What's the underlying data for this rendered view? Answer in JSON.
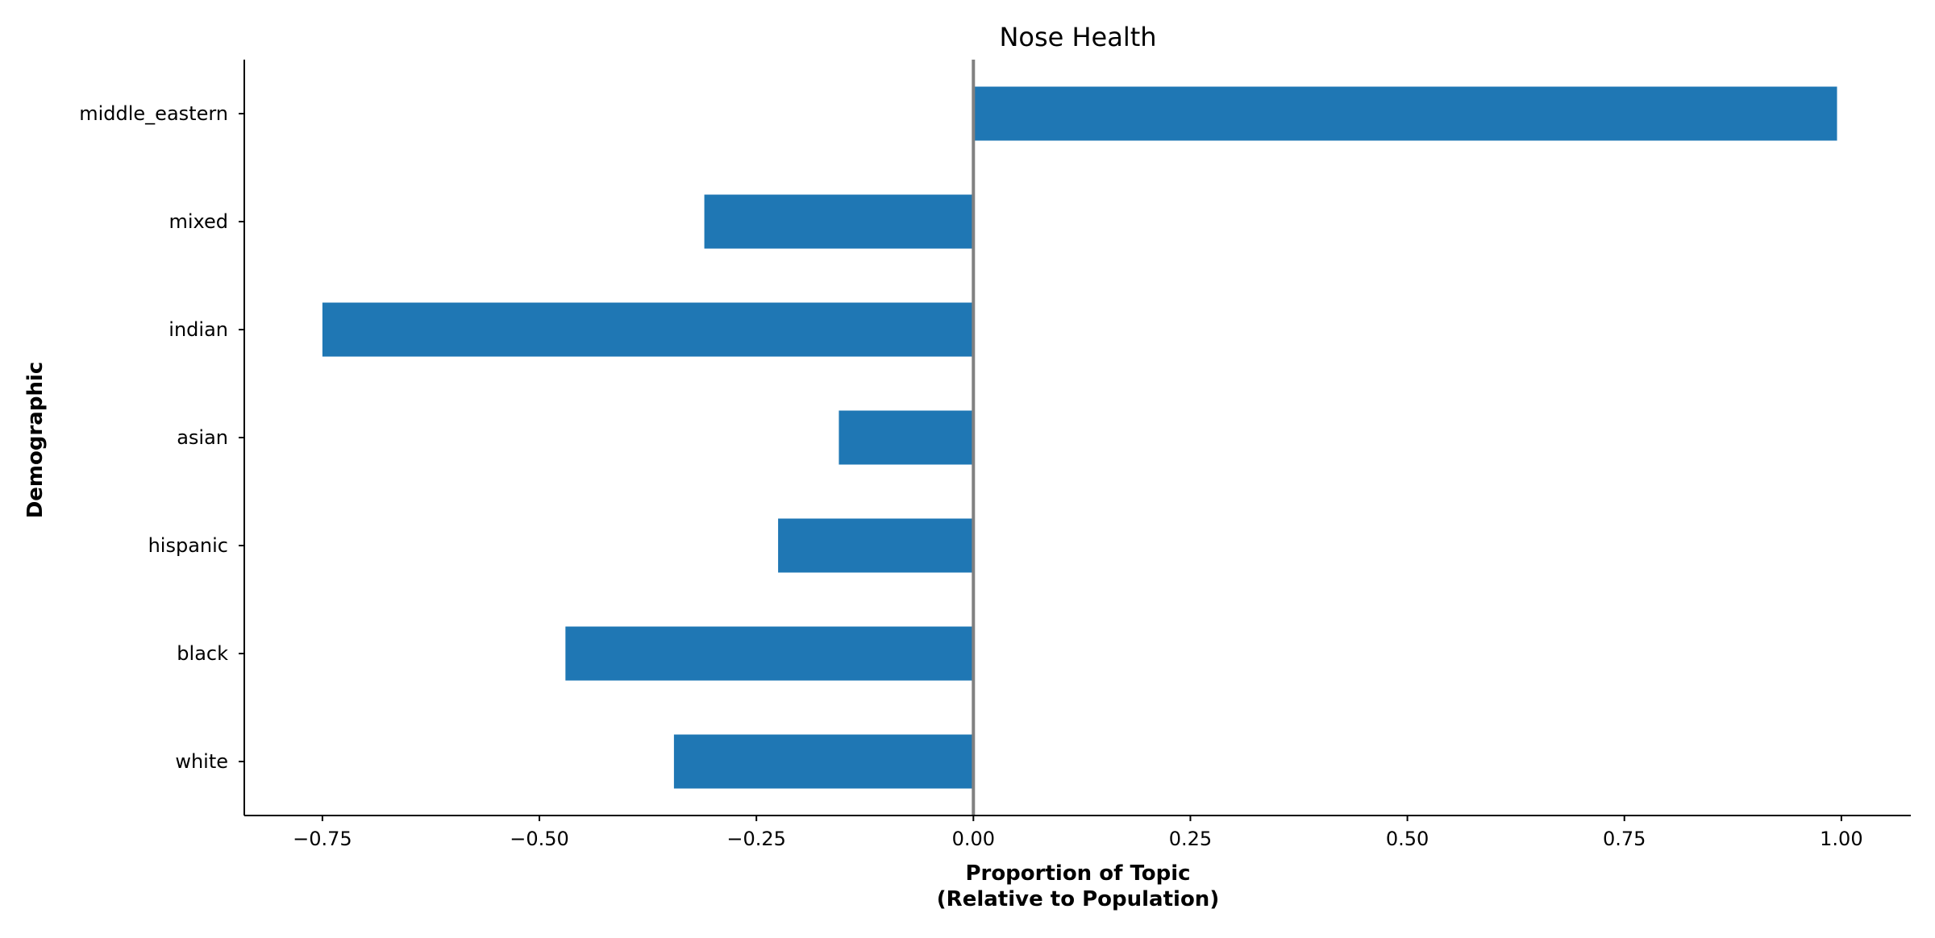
{
  "chart_data": {
    "type": "bar",
    "orientation": "horizontal",
    "title": "Nose Health",
    "xlabel_lines": [
      "Proportion of Topic",
      "(Relative to Population)"
    ],
    "ylabel": "Demographic",
    "categories": [
      "middle_eastern",
      "mixed",
      "indian",
      "asian",
      "hispanic",
      "black",
      "white"
    ],
    "values": [
      0.995,
      -0.31,
      -0.75,
      -0.155,
      -0.225,
      -0.47,
      -0.345
    ],
    "xlim": [
      -0.84,
      1.08
    ],
    "xticks": [
      -0.75,
      -0.5,
      -0.25,
      0.0,
      0.25,
      0.5,
      0.75,
      1.0
    ],
    "xtick_labels": [
      "−0.75",
      "−0.50",
      "−0.25",
      "0.00",
      "0.25",
      "0.50",
      "0.75",
      "1.00"
    ],
    "zero_line": true,
    "grid": false,
    "legend": "none",
    "colors": {
      "bar": "#1f77b4",
      "zero_line": "#808080",
      "axis": "#000000"
    }
  }
}
